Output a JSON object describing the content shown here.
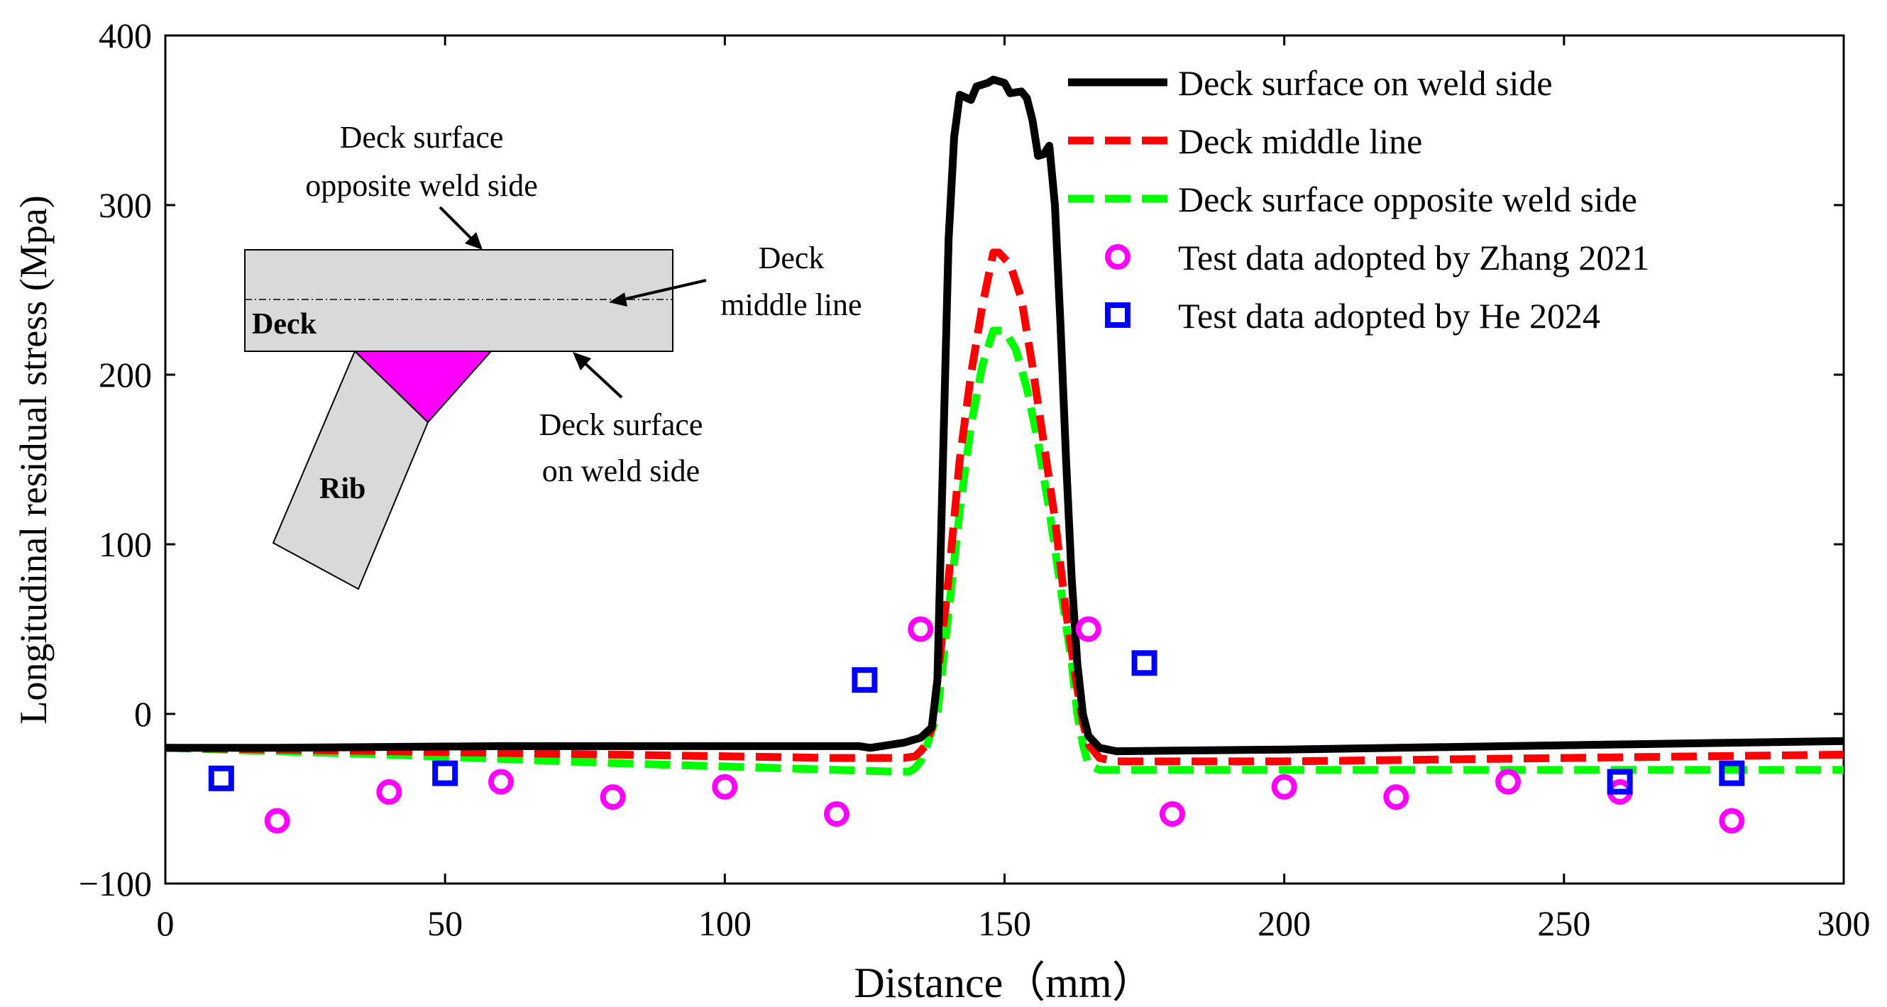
{
  "chart_data": {
    "type": "line",
    "title": "",
    "xlabel": "Distance（mm）",
    "ylabel": "Longitudinal residual stress (Mpa)",
    "xlim": [
      0,
      300
    ],
    "ylim": [
      -100,
      400
    ],
    "xticks": [
      "0",
      "50",
      "100",
      "150",
      "200",
      "250",
      "300"
    ],
    "yticks": [
      "−100",
      "0",
      "100",
      "200",
      "300",
      "400"
    ],
    "grid": false,
    "legend_position": "top-right",
    "series": [
      {
        "name": "Deck surface on weld side",
        "style": "solid",
        "color": "#000000",
        "points": [
          [
            0,
            -20
          ],
          [
            20,
            -20
          ],
          [
            60,
            -19
          ],
          [
            100,
            -19
          ],
          [
            124,
            -19
          ],
          [
            126,
            -20
          ],
          [
            128,
            -19
          ],
          [
            132,
            -17
          ],
          [
            135,
            -14
          ],
          [
            137,
            -8
          ],
          [
            138,
            20
          ],
          [
            139,
            150
          ],
          [
            140,
            280
          ],
          [
            141,
            340
          ],
          [
            142,
            365
          ],
          [
            144,
            362
          ],
          [
            145,
            370
          ],
          [
            147,
            372
          ],
          [
            148,
            374
          ],
          [
            150,
            372
          ],
          [
            151,
            366
          ],
          [
            153,
            367
          ],
          [
            154,
            363
          ],
          [
            155,
            350
          ],
          [
            156,
            329
          ],
          [
            157,
            330
          ],
          [
            158,
            335
          ],
          [
            159,
            300
          ],
          [
            160,
            230
          ],
          [
            161,
            150
          ],
          [
            162,
            80
          ],
          [
            163,
            30
          ],
          [
            164,
            0
          ],
          [
            165,
            -13
          ],
          [
            167,
            -20
          ],
          [
            170,
            -22
          ],
          [
            200,
            -21
          ],
          [
            240,
            -19
          ],
          [
            260,
            -18
          ],
          [
            280,
            -17
          ],
          [
            300,
            -16
          ]
        ]
      },
      {
        "name": "Deck middle line",
        "style": "dashed",
        "color": "#ff0000",
        "points": [
          [
            0,
            -20
          ],
          [
            40,
            -22
          ],
          [
            80,
            -24
          ],
          [
            120,
            -26
          ],
          [
            132,
            -26
          ],
          [
            134,
            -25
          ],
          [
            135,
            -22
          ],
          [
            136,
            -18
          ],
          [
            137,
            -8
          ],
          [
            138,
            20
          ],
          [
            140,
            80
          ],
          [
            142,
            150
          ],
          [
            144,
            200
          ],
          [
            146,
            240
          ],
          [
            148,
            272
          ],
          [
            149,
            272
          ],
          [
            151,
            265
          ],
          [
            153,
            245
          ],
          [
            155,
            205
          ],
          [
            157,
            160
          ],
          [
            159,
            115
          ],
          [
            161,
            60
          ],
          [
            163,
            15
          ],
          [
            164,
            -5
          ],
          [
            165,
            -18
          ],
          [
            167,
            -26
          ],
          [
            170,
            -28
          ],
          [
            200,
            -28
          ],
          [
            250,
            -26
          ],
          [
            300,
            -24
          ]
        ]
      },
      {
        "name": "Deck surface opposite weld side",
        "style": "dashed",
        "color": "#00ff00",
        "points": [
          [
            0,
            -20
          ],
          [
            40,
            -24
          ],
          [
            80,
            -29
          ],
          [
            120,
            -33
          ],
          [
            130,
            -34
          ],
          [
            133,
            -34
          ],
          [
            134,
            -32
          ],
          [
            135,
            -28
          ],
          [
            136,
            -20
          ],
          [
            138,
            0
          ],
          [
            140,
            60
          ],
          [
            142,
            120
          ],
          [
            144,
            170
          ],
          [
            146,
            205
          ],
          [
            148,
            226
          ],
          [
            150,
            226
          ],
          [
            152,
            215
          ],
          [
            154,
            192
          ],
          [
            156,
            160
          ],
          [
            158,
            120
          ],
          [
            160,
            75
          ],
          [
            162,
            30
          ],
          [
            163,
            0
          ],
          [
            164,
            -18
          ],
          [
            165,
            -30
          ],
          [
            167,
            -33
          ],
          [
            200,
            -33
          ],
          [
            250,
            -33
          ],
          [
            300,
            -33
          ]
        ]
      },
      {
        "name": "Test data adopted by Zhang 2021",
        "style": "marker-circle",
        "color": "#ff00ff",
        "points": [
          [
            20,
            -63
          ],
          [
            40,
            -46
          ],
          [
            60,
            -40
          ],
          [
            80,
            -49
          ],
          [
            100,
            -43
          ],
          [
            120,
            -59
          ],
          [
            135,
            50
          ],
          [
            165,
            50
          ],
          [
            180,
            -59
          ],
          [
            200,
            -43
          ],
          [
            220,
            -49
          ],
          [
            240,
            -40
          ],
          [
            260,
            -46
          ],
          [
            280,
            -63
          ]
        ]
      },
      {
        "name": "Test data adopted by He 2024",
        "style": "marker-square",
        "color": "#0000ff",
        "points": [
          [
            10,
            -38
          ],
          [
            50,
            -35
          ],
          [
            125,
            20
          ],
          [
            175,
            30
          ],
          [
            260,
            -40
          ],
          [
            280,
            -35
          ]
        ]
      }
    ],
    "inset": {
      "label_deck": "Deck",
      "label_rib": "Rib",
      "label_opposite_line1": "Deck surface",
      "label_opposite_line2": "opposite weld side",
      "label_middle_line1": "Deck",
      "label_middle_line2": "middle line",
      "label_weld_line1": "Deck surface",
      "label_weld_line2": "on weld side",
      "deck_color": "#d9d9d9",
      "weld_color": "#ff00ff"
    }
  }
}
